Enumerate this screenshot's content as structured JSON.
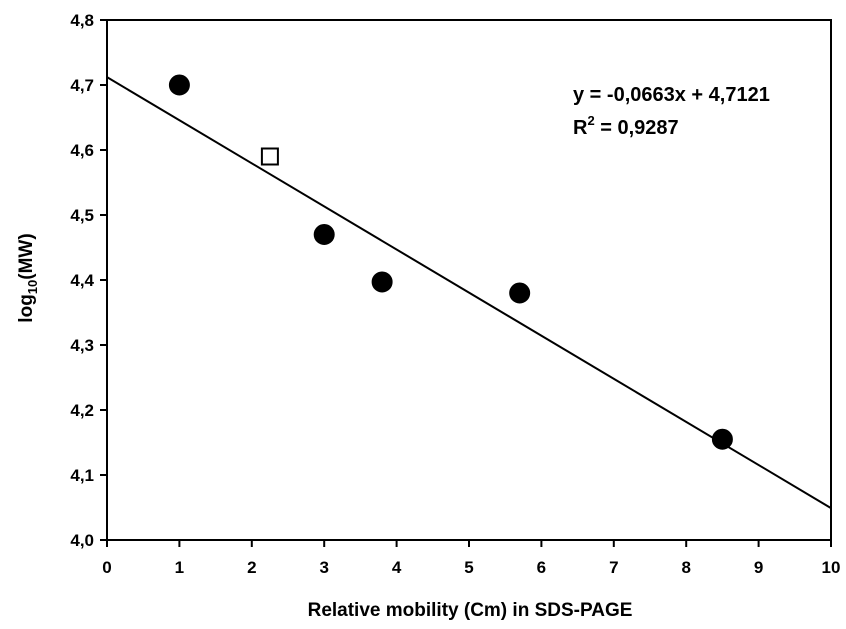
{
  "chart_data": {
    "type": "scatter",
    "title": "",
    "xlabel": "Relative mobility (Cm) in SDS-PAGE",
    "ylabel": {
      "prefix": "log",
      "subscript": "10",
      "suffix": "(MW)"
    },
    "xlim": [
      0,
      10
    ],
    "ylim": [
      4.0,
      4.8
    ],
    "x_ticks": [
      0,
      1,
      2,
      3,
      4,
      5,
      6,
      7,
      8,
      9,
      10
    ],
    "x_tick_labels": [
      "0",
      "1",
      "2",
      "3",
      "4",
      "5",
      "6",
      "7",
      "8",
      "9",
      "10"
    ],
    "y_ticks": [
      4.0,
      4.1,
      4.2,
      4.3,
      4.4,
      4.5,
      4.6,
      4.7,
      4.8
    ],
    "y_tick_labels": [
      "4,0",
      "4,1",
      "4,2",
      "4,3",
      "4,4",
      "4,5",
      "4,6",
      "4,7",
      "4,8"
    ],
    "grid": false,
    "series": [
      {
        "marker": "filled-circle",
        "color": "#000000",
        "x": [
          1.0,
          3.0,
          3.8,
          5.7,
          8.5
        ],
        "y": [
          4.7,
          4.47,
          4.397,
          4.38,
          4.155
        ]
      },
      {
        "marker": "open-square",
        "color": "#000000",
        "x": [
          2.25
        ],
        "y": [
          4.59
        ]
      }
    ],
    "trendline": {
      "slope": -0.0663,
      "intercept": 4.7121,
      "x_range": [
        0,
        10
      ]
    },
    "annotations": {
      "equation": "y = -0,0663x + 4,7121",
      "r2_base": "R",
      "r2_exponent": "2",
      "r2_value": " = 0,9287"
    }
  }
}
